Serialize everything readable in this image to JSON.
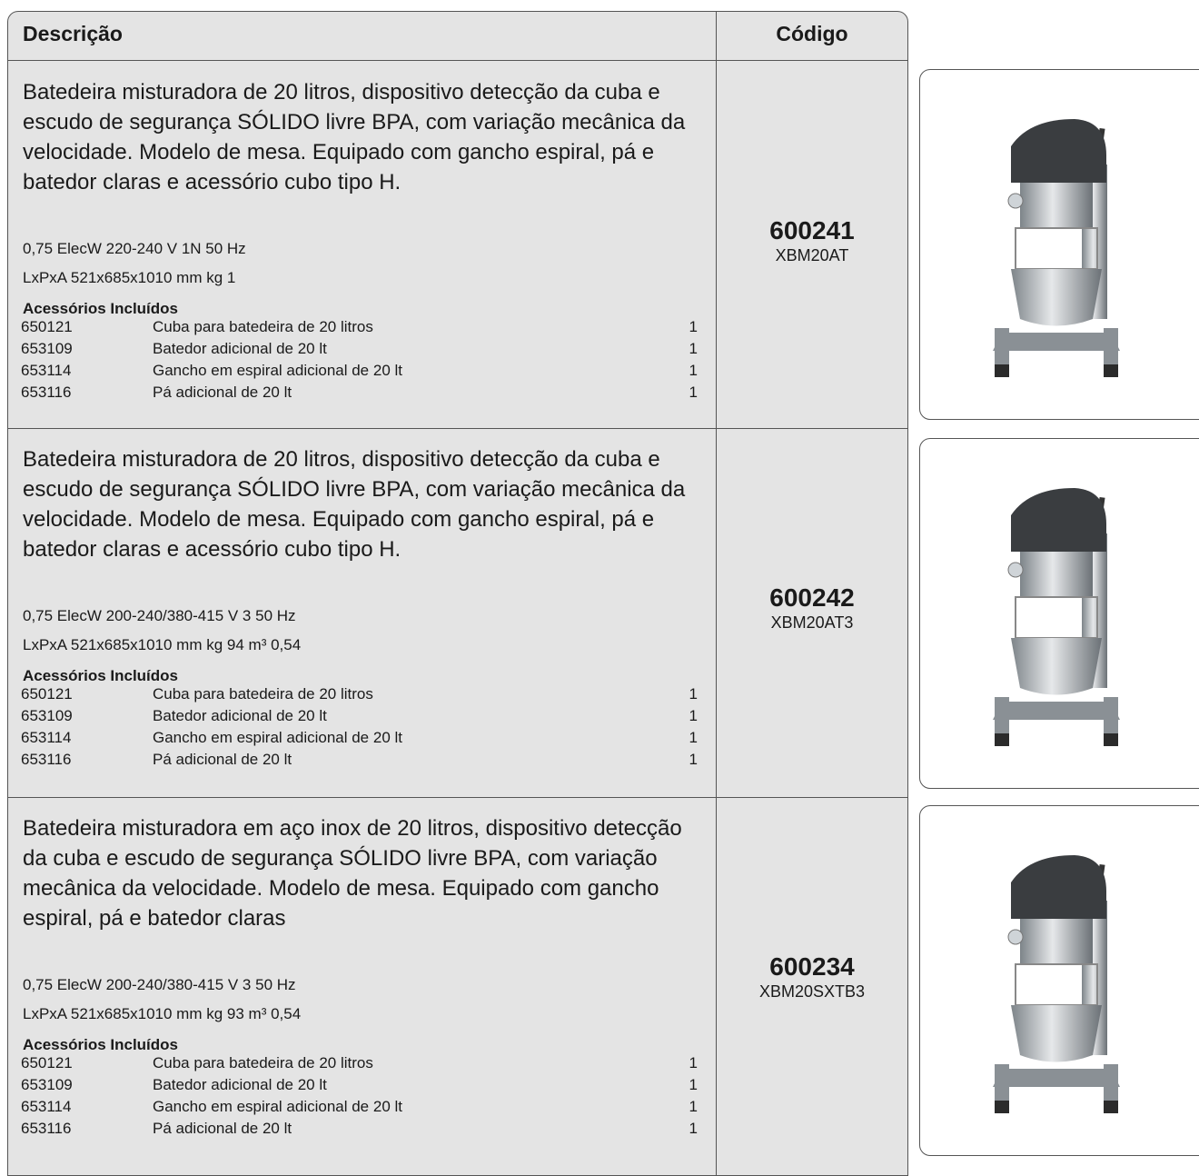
{
  "table": {
    "header": [
      "Descrição",
      "Código"
    ],
    "rows": [
      {
        "description": "Batedeira misturadora de 20 litros, dispositivo detecção da cuba e escudo de segurança SÓLIDO livre BPA, com variação mecânica da velocidade. Modelo de mesa. Equipado com gancho espiral, pá e batedor claras e acessório cubo tipo H.",
        "electrical": "0,75 ElecW 220-240 V 1N 50 Hz",
        "dimensions": "LxPxA 521x685x1010 mm kg 1",
        "accessories_title": "Acessórios Incluídos",
        "accessories": [
          [
            "650121",
            "Cuba para batedeira de 20 litros",
            "1"
          ],
          [
            "653109",
            "Batedor adicional de 20 lt",
            "1"
          ],
          [
            "653114",
            "Gancho em espiral adicional de 20 lt",
            "1"
          ],
          [
            "653116",
            "Pá adicional de 20 lt",
            "1"
          ]
        ],
        "code": "600241",
        "model": "XBM20AT"
      },
      {
        "description": "Batedeira misturadora de 20 litros, dispositivo detecção da cuba e escudo de segurança SÓLIDO livre BPA, com variação mecânica da velocidade. Modelo de mesa. Equipado com gancho espiral, pá e batedor claras e acessório cubo tipo H.",
        "electrical": "0,75 ElecW 200-240/380-415 V 3 50 Hz",
        "dimensions": "LxPxA 521x685x1010 mm kg 94  m³ 0,54",
        "accessories_title": "Acessórios Incluídos",
        "accessories": [
          [
            "650121",
            "Cuba para batedeira de 20 litros",
            "1"
          ],
          [
            "653109",
            "Batedor adicional de 20 lt",
            "1"
          ],
          [
            "653114",
            "Gancho em espiral adicional de 20 lt",
            "1"
          ],
          [
            "653116",
            "Pá adicional de 20 lt",
            "1"
          ]
        ],
        "code": "600242",
        "model": "XBM20AT3"
      },
      {
        "description": "Batedeira misturadora em aço inox de 20 litros, dispositivo detecção da cuba e escudo de segurança SÓLIDO livre BPA, com variação mecânica da velocidade. Modelo de mesa. Equipado com gancho espiral, pá e batedor claras",
        "electrical": "0,75 ElecW 200-240/380-415 V 3 50 Hz",
        "dimensions": "LxPxA 521x685x1010 mm kg 93  m³ 0,54",
        "accessories_title": "Acessórios Incluídos",
        "accessories": [
          [
            "650121",
            "Cuba para batedeira de 20 litros",
            "1"
          ],
          [
            "653109",
            "Batedor adicional de 20 lt",
            "1"
          ],
          [
            "653114",
            "Gancho em espiral adicional de 20 lt",
            "1"
          ],
          [
            "653116",
            "Pá adicional de 20 lt",
            "1"
          ]
        ],
        "code": "600234",
        "model": "XBM20SXTB3"
      }
    ]
  }
}
